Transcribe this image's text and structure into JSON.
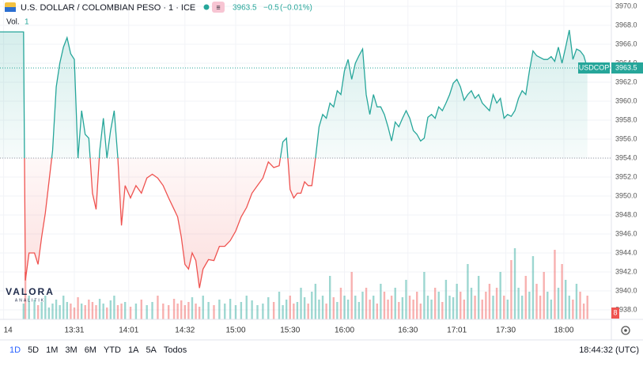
{
  "header": {
    "title": "U.S. DOLLAR / COLOMBIAN PESO · 1 · ICE",
    "change": "−0.5",
    "change_pct": "(−0.01%)",
    "volume_label": "Vol.",
    "volume_value": 1
  },
  "logo": {
    "name": "VALORA",
    "sub": "ANALITIK"
  },
  "chart_data": {
    "type": "baseline",
    "symbol": "USDCOP",
    "last_price": 3963.5,
    "baseline": 3954.0,
    "up_color": "#26a69a",
    "down_color": "#ef5350",
    "grid": true,
    "xlim": [
      770,
      1095
    ],
    "ylim": [
      3938,
      3970
    ],
    "yticks": [
      {
        "value": 3970,
        "label": "3970.0"
      },
      {
        "value": 3968,
        "label": "3968.0"
      },
      {
        "value": 3966,
        "label": "3966.0"
      },
      {
        "value": 3964,
        "label": "3964.0"
      },
      {
        "value": 3962,
        "label": "3962.0"
      },
      {
        "value": 3960,
        "label": "3960.0"
      },
      {
        "value": 3958,
        "label": "3958.0"
      },
      {
        "value": 3956,
        "label": "3956.0"
      },
      {
        "value": 3954,
        "label": "3954.0"
      },
      {
        "value": 3952,
        "label": "3952.0"
      },
      {
        "value": 3950,
        "label": "3950.0"
      },
      {
        "value": 3948,
        "label": "3948.0"
      },
      {
        "value": 3946,
        "label": "3946.0"
      },
      {
        "value": 3944,
        "label": "3944.0"
      },
      {
        "value": 3942,
        "label": "3942.0"
      },
      {
        "value": 3940,
        "label": "3940.0"
      },
      {
        "value": 3938,
        "label": "3938.0"
      }
    ],
    "xticks": [
      {
        "value": 772,
        "label": "14"
      },
      {
        "value": 811,
        "label": "13:31"
      },
      {
        "value": 841,
        "label": "14:01"
      },
      {
        "value": 872,
        "label": "14:32"
      },
      {
        "value": 900,
        "label": "15:00"
      },
      {
        "value": 930,
        "label": "15:30"
      },
      {
        "value": 960,
        "label": "16:00"
      },
      {
        "value": 995,
        "label": "16:30"
      },
      {
        "value": 1022,
        "label": "17:01"
      },
      {
        "value": 1049,
        "label": "17:30"
      },
      {
        "value": 1081,
        "label": "18:00"
      }
    ],
    "x": [
      770,
      783,
      784,
      786,
      789,
      791,
      793,
      795,
      797,
      799,
      801,
      803,
      805,
      807,
      809,
      811,
      813,
      815,
      817,
      819,
      821,
      823,
      825,
      827,
      829,
      831,
      833,
      835,
      837,
      839,
      842,
      845,
      848,
      851,
      854,
      857,
      860,
      863,
      866,
      868,
      870,
      872,
      874,
      876,
      878,
      880,
      882,
      885,
      888,
      891,
      894,
      897,
      900,
      903,
      906,
      909,
      912,
      915,
      918,
      921,
      924,
      926,
      928,
      930,
      932,
      934,
      936,
      938,
      940,
      942,
      944,
      946,
      948,
      950,
      952,
      954,
      956,
      958,
      960,
      962,
      964,
      966,
      968,
      970,
      972,
      974,
      976,
      978,
      980,
      982,
      984,
      986,
      988,
      990,
      992,
      994,
      996,
      998,
      1000,
      1002,
      1004,
      1006,
      1008,
      1010,
      1012,
      1014,
      1016,
      1018,
      1020,
      1022,
      1024,
      1026,
      1028,
      1030,
      1032,
      1034,
      1036,
      1038,
      1040,
      1042,
      1044,
      1046,
      1048,
      1050,
      1052,
      1054,
      1056,
      1058,
      1060,
      1062,
      1064,
      1066,
      1068,
      1070,
      1072,
      1074,
      1076,
      1078,
      1080,
      1082,
      1084,
      1086,
      1088,
      1090,
      1092,
      1094
    ],
    "series": [
      {
        "name": "USDCOP",
        "values": [
          3967.3,
          3967.3,
          3941.1,
          3944.0,
          3944.0,
          3942.8,
          3945.7,
          3948.2,
          3951.5,
          3954.8,
          3961.5,
          3964.0,
          3965.7,
          3966.7,
          3965.0,
          3964.4,
          3954.0,
          3959.0,
          3956.5,
          3956.1,
          3950.3,
          3948.6,
          3954.8,
          3958.2,
          3954.0,
          3956.9,
          3959.0,
          3954.0,
          3946.9,
          3951.1,
          3949.8,
          3951.1,
          3950.3,
          3951.9,
          3952.3,
          3951.9,
          3951.1,
          3949.8,
          3948.6,
          3947.8,
          3945.7,
          3942.8,
          3942.3,
          3944.0,
          3943.2,
          3940.3,
          3942.3,
          3943.3,
          3943.2,
          3944.7,
          3944.7,
          3945.3,
          3946.3,
          3947.8,
          3948.8,
          3950.3,
          3951.1,
          3951.9,
          3953.6,
          3953.0,
          3953.2,
          3955.7,
          3956.1,
          3950.7,
          3949.8,
          3950.3,
          3950.3,
          3951.5,
          3951.1,
          3951.1,
          3954.0,
          3957.3,
          3958.6,
          3958.2,
          3959.8,
          3959.4,
          3961.1,
          3960.7,
          3963.2,
          3964.4,
          3962.3,
          3964.0,
          3964.8,
          3965.5,
          3960.7,
          3958.6,
          3960.7,
          3959.4,
          3959.4,
          3958.6,
          3957.3,
          3955.8,
          3957.8,
          3957.3,
          3958.2,
          3959.0,
          3958.2,
          3956.9,
          3956.5,
          3955.8,
          3956.1,
          3958.3,
          3958.6,
          3958.2,
          3959.4,
          3959.0,
          3959.8,
          3960.7,
          3961.9,
          3962.3,
          3961.5,
          3960.1,
          3960.7,
          3961.1,
          3960.3,
          3960.7,
          3959.8,
          3959.4,
          3959.0,
          3960.7,
          3959.8,
          3960.3,
          3958.2,
          3958.6,
          3958.4,
          3959.0,
          3960.3,
          3961.1,
          3960.7,
          3963.2,
          3965.3,
          3964.8,
          3964.6,
          3964.4,
          3964.4,
          3964.7,
          3964.2,
          3965.7,
          3964.0,
          3965.7,
          3967.5,
          3964.4,
          3965.5,
          3965.3,
          3964.8,
          3963.5
        ]
      },
      {
        "name": "Vol.",
        "axis": "y2",
        "values": [
          0,
          20,
          60,
          30,
          25,
          18,
          22,
          30,
          15,
          20,
          25,
          18,
          30,
          22,
          20,
          15,
          28,
          20,
          18,
          25,
          22,
          18,
          26,
          20,
          15,
          24,
          30,
          18,
          20,
          22,
          16,
          20,
          25,
          18,
          22,
          30,
          20,
          18,
          26,
          20,
          24,
          18,
          22,
          28,
          20,
          16,
          30,
          22,
          18,
          25,
          20,
          26,
          18,
          22,
          30,
          24,
          18,
          20,
          28,
          22,
          35,
          18,
          25,
          30,
          20,
          22,
          40,
          28,
          20,
          35,
          45,
          25,
          30,
          20,
          55,
          28,
          22,
          40,
          30,
          25,
          60,
          30,
          22,
          35,
          40,
          25,
          30,
          20,
          45,
          35,
          25,
          30,
          40,
          22,
          28,
          50,
          30,
          25,
          35,
          20,
          60,
          30,
          25,
          40,
          35,
          22,
          50,
          30,
          28,
          45,
          35,
          25,
          70,
          40,
          30,
          55,
          25,
          35,
          45,
          30,
          40,
          60,
          30,
          25,
          75,
          90,
          40,
          30,
          55,
          35,
          80,
          45,
          30,
          60,
          35,
          25,
          88,
          40,
          70,
          50,
          30,
          25,
          45,
          35,
          20,
          30
        ]
      }
    ],
    "y2lim": [
      0,
      100
    ],
    "volume_tag": 8
  },
  "toolbar": {
    "periods": [
      "1D",
      "5D",
      "1M",
      "3M",
      "6M",
      "YTD",
      "1A",
      "5A",
      "Todos"
    ],
    "time": "18:44:32 (UTC)"
  }
}
